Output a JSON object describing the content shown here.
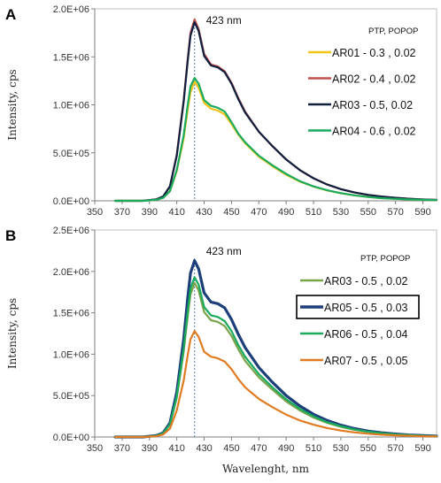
{
  "chart_data": [
    {
      "panel": "A",
      "type": "line",
      "xlim": [
        350,
        600
      ],
      "ylim": [
        0,
        2000000
      ],
      "xticks": [
        350,
        370,
        390,
        410,
        430,
        450,
        470,
        490,
        510,
        530,
        550,
        570,
        590
      ],
      "yticks": [
        0,
        500000,
        1000000,
        1500000,
        2000000
      ],
      "ytick_labels": [
        "0.0E+00",
        "5.0E+05",
        "1.0E+06",
        "1.5E+06",
        "2.0E+06"
      ],
      "xlabel": "",
      "ylabel": "Intensity, cps",
      "legend_title": "PTP, POPOP",
      "annotation": {
        "text": "423 nm",
        "x": 423
      },
      "series": [
        {
          "name": "AR01 - 0.3 , 0.02",
          "color": "#f2c318",
          "width": 2.2,
          "x": [
            365,
            385,
            395,
            400,
            405,
            410,
            415,
            418,
            420,
            423,
            426,
            430,
            435,
            440,
            445,
            450,
            455,
            460,
            470,
            480,
            490,
            500,
            510,
            520,
            530,
            540,
            550,
            560,
            570,
            580,
            590,
            600
          ],
          "y": [
            0,
            0,
            10000,
            30000,
            100000,
            310000,
            650000,
            950000,
            1130000,
            1240000,
            1180000,
            1020000,
            960000,
            940000,
            900000,
            800000,
            690000,
            600000,
            460000,
            360000,
            270000,
            200000,
            148000,
            108000,
            78000,
            56000,
            40000,
            28000,
            20000,
            14000,
            10000,
            7000
          ]
        },
        {
          "name": "AR02 - 0.4 , 0.02",
          "color": "#c0504d",
          "width": 2.2,
          "x": [
            365,
            385,
            395,
            400,
            405,
            410,
            415,
            418,
            420,
            423,
            426,
            430,
            435,
            440,
            445,
            450,
            455,
            460,
            470,
            480,
            490,
            500,
            510,
            520,
            530,
            540,
            550,
            560,
            570,
            580,
            590,
            600
          ],
          "y": [
            0,
            0,
            15000,
            45000,
            150000,
            480000,
            1050000,
            1480000,
            1750000,
            1890000,
            1790000,
            1530000,
            1420000,
            1400000,
            1350000,
            1230000,
            1070000,
            930000,
            720000,
            570000,
            430000,
            320000,
            235000,
            170000,
            122000,
            87000,
            62000,
            44000,
            31000,
            21000,
            14000,
            9000
          ]
        },
        {
          "name": "AR03 - 0.5, 0.02",
          "color": "#0f1f3d",
          "width": 2.2,
          "x": [
            365,
            385,
            395,
            400,
            405,
            410,
            415,
            418,
            420,
            423,
            426,
            430,
            435,
            440,
            445,
            450,
            455,
            460,
            470,
            480,
            490,
            500,
            510,
            520,
            530,
            540,
            550,
            560,
            570,
            580,
            590,
            600
          ],
          "y": [
            0,
            0,
            15000,
            45000,
            150000,
            470000,
            1030000,
            1460000,
            1720000,
            1860000,
            1770000,
            1510000,
            1410000,
            1390000,
            1340000,
            1220000,
            1060000,
            920000,
            720000,
            570000,
            430000,
            320000,
            235000,
            170000,
            122000,
            87000,
            62000,
            44000,
            31000,
            21000,
            14000,
            9000
          ]
        },
        {
          "name": "AR04 - 0.6 , 0.02",
          "color": "#1aaa5e",
          "width": 2.2,
          "x": [
            365,
            385,
            395,
            400,
            405,
            410,
            415,
            418,
            420,
            423,
            426,
            430,
            435,
            440,
            445,
            450,
            455,
            460,
            470,
            480,
            490,
            500,
            510,
            520,
            530,
            540,
            550,
            560,
            570,
            580,
            590,
            600
          ],
          "y": [
            0,
            0,
            10000,
            30000,
            100000,
            320000,
            680000,
            1000000,
            1190000,
            1280000,
            1220000,
            1050000,
            990000,
            970000,
            930000,
            820000,
            700000,
            610000,
            470000,
            370000,
            280000,
            205000,
            150000,
            110000,
            80000,
            57000,
            40000,
            28000,
            20000,
            14000,
            10000,
            7000
          ]
        }
      ]
    },
    {
      "panel": "B",
      "type": "line",
      "xlim": [
        350,
        600
      ],
      "ylim": [
        0,
        2500000
      ],
      "xticks": [
        350,
        370,
        390,
        410,
        430,
        450,
        470,
        490,
        510,
        530,
        550,
        570,
        590
      ],
      "yticks": [
        0,
        500000,
        1000000,
        1500000,
        2000000,
        2500000
      ],
      "ytick_labels": [
        "0.0E+00",
        "5.0E+05",
        "1.0E+06",
        "1.5E+06",
        "2.0E+06",
        "2.5E+06"
      ],
      "xlabel": "Wavelenght, nm",
      "ylabel": "Intensity, cps",
      "legend_title": "PTP, POPOP",
      "annotation": {
        "text": "423 nm",
        "x": 423
      },
      "series": [
        {
          "name": "AR03 - 0.5 , 0.02",
          "color": "#7aa34a",
          "width": 2.2,
          "x": [
            365,
            385,
            395,
            400,
            405,
            410,
            415,
            418,
            420,
            423,
            426,
            430,
            435,
            440,
            445,
            450,
            455,
            460,
            470,
            480,
            490,
            500,
            510,
            520,
            530,
            540,
            550,
            560,
            570,
            580,
            590,
            600
          ],
          "y": [
            0,
            0,
            15000,
            45000,
            150000,
            470000,
            1030000,
            1460000,
            1720000,
            1860000,
            1770000,
            1510000,
            1410000,
            1390000,
            1340000,
            1220000,
            1060000,
            920000,
            720000,
            570000,
            430000,
            320000,
            235000,
            170000,
            122000,
            87000,
            62000,
            44000,
            31000,
            21000,
            14000,
            9000
          ]
        },
        {
          "name": "AR05 - 0.5 , 0.03",
          "color": "#1c3f7a",
          "width": 3.2,
          "boxed": true,
          "x": [
            365,
            385,
            395,
            400,
            405,
            410,
            415,
            418,
            420,
            423,
            426,
            430,
            435,
            440,
            445,
            450,
            455,
            460,
            470,
            480,
            490,
            500,
            510,
            520,
            530,
            540,
            550,
            560,
            570,
            580,
            590,
            600
          ],
          "y": [
            0,
            0,
            17000,
            50000,
            170000,
            540000,
            1180000,
            1680000,
            1980000,
            2130000,
            2030000,
            1740000,
            1630000,
            1610000,
            1560000,
            1420000,
            1240000,
            1080000,
            840000,
            660000,
            500000,
            375000,
            275000,
            200000,
            143000,
            102000,
            72000,
            51000,
            36000,
            25000,
            17000,
            11000
          ]
        },
        {
          "name": "AR06 - 0.5 , 0.04",
          "color": "#1aaa5e",
          "width": 2.2,
          "x": [
            365,
            385,
            395,
            400,
            405,
            410,
            415,
            418,
            420,
            423,
            426,
            430,
            435,
            440,
            445,
            450,
            455,
            460,
            470,
            480,
            490,
            500,
            510,
            520,
            530,
            540,
            550,
            560,
            570,
            580,
            590,
            600
          ],
          "y": [
            0,
            0,
            15000,
            46000,
            155000,
            490000,
            1070000,
            1520000,
            1790000,
            1930000,
            1840000,
            1570000,
            1470000,
            1450000,
            1400000,
            1280000,
            1110000,
            970000,
            760000,
            600000,
            455000,
            340000,
            250000,
            180000,
            130000,
            92000,
            65000,
            46000,
            32000,
            22000,
            15000,
            10000
          ]
        },
        {
          "name": "AR07 - 0.5 , 0.05",
          "color": "#e07b22",
          "width": 2.2,
          "x": [
            365,
            385,
            395,
            400,
            405,
            410,
            415,
            418,
            420,
            423,
            426,
            430,
            435,
            440,
            445,
            450,
            455,
            460,
            470,
            480,
            490,
            500,
            510,
            520,
            530,
            540,
            550,
            560,
            570,
            580,
            590,
            600
          ],
          "y": [
            0,
            0,
            10000,
            30000,
            100000,
            320000,
            680000,
            990000,
            1180000,
            1280000,
            1210000,
            1030000,
            970000,
            950000,
            910000,
            820000,
            700000,
            600000,
            460000,
            360000,
            270000,
            200000,
            148000,
            108000,
            78000,
            56000,
            40000,
            28000,
            20000,
            14000,
            10000,
            7000
          ]
        }
      ]
    }
  ]
}
